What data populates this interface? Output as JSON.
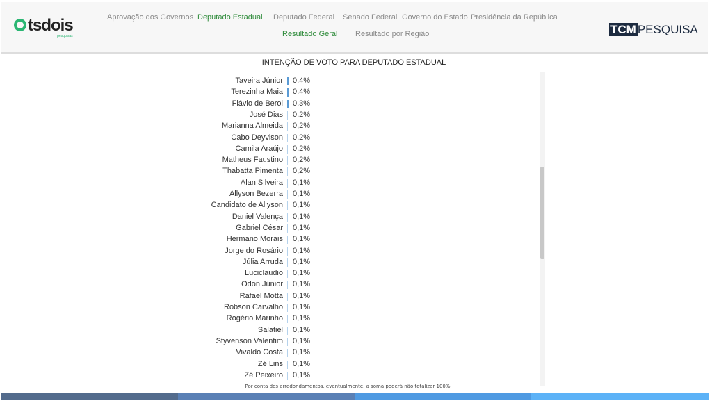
{
  "header": {
    "logo": "tsdois",
    "logo_sub": "pesquisas",
    "nav": [
      "Aprovação dos Governos",
      "Deputado Estadual",
      "Deputado Federal",
      "Senado Federal",
      "Governo do Estado",
      "Presidência da República"
    ],
    "subnav": [
      "Resultado Geral",
      "Resultado por Região"
    ],
    "brand_a": "TCM",
    "brand_b": "PESQUISA"
  },
  "chart_data": {
    "type": "bar",
    "orientation": "horizontal",
    "title": "INTENÇÃO DE VOTO PARA DEPUTADO ESTADUAL",
    "categories": [
      "Taveira Júnior",
      "Terezinha Maia",
      "Flávio de Beroi",
      "José Dias",
      "Marianna Almeida",
      "Cabo Deyvison",
      "Camila Araújo",
      "Matheus Faustino",
      "Thabatta Pimenta",
      "Alan Silveira",
      "Allyson Bezerra",
      "Candidato de Allyson",
      "Daniel Valença",
      "Gabriel César",
      "Hermano Morais",
      "Jorge do Rosário",
      "Júlia Arruda",
      "Luciclaudio",
      "Odon Júnior",
      "Rafael Motta",
      "Robson Carvalho",
      "Rogério Marinho",
      "Salatiel",
      "Styvenson Valentim",
      "Vivaldo Costa",
      "Zé Lins",
      "Zé Peixeiro"
    ],
    "values": [
      0.4,
      0.4,
      0.3,
      0.2,
      0.2,
      0.2,
      0.2,
      0.2,
      0.2,
      0.1,
      0.1,
      0.1,
      0.1,
      0.1,
      0.1,
      0.1,
      0.1,
      0.1,
      0.1,
      0.1,
      0.1,
      0.1,
      0.1,
      0.1,
      0.1,
      0.1,
      0.1
    ],
    "labels": [
      "0,4%",
      "0,4%",
      "0,3%",
      "0,2%",
      "0,2%",
      "0,2%",
      "0,2%",
      "0,2%",
      "0,2%",
      "0,1%",
      "0,1%",
      "0,1%",
      "0,1%",
      "0,1%",
      "0,1%",
      "0,1%",
      "0,1%",
      "0,1%",
      "0,1%",
      "0,1%",
      "0,1%",
      "0,1%",
      "0,1%",
      "0,1%",
      "0,1%",
      "0,1%",
      "0,1%"
    ],
    "bar_color": "#5b9bd5"
  },
  "note": "Por conta dos arredondamentos, eventualmente, a soma poderá não totalizar 100%",
  "footer_colors": [
    "#536b8c",
    "#5a80b5",
    "#4f9ae2",
    "#5cb2f7"
  ]
}
